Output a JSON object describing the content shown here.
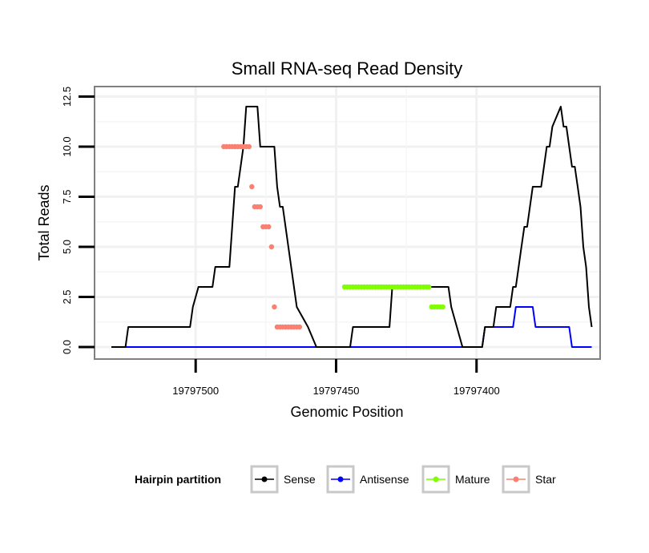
{
  "chart_data": {
    "type": "line",
    "title": "Small RNA-seq Read Density",
    "xlabel": "Genomic Position",
    "ylabel": "Total Reads",
    "x_reversed": true,
    "xlim": [
      19797536,
      19797356
    ],
    "ylim": [
      -0.6,
      13.0
    ],
    "x_ticks": [
      19797500,
      19797450,
      19797400
    ],
    "x_tick_labels": [
      "19797500",
      "19797450",
      "19797400"
    ],
    "y_ticks": [
      0.0,
      2.5,
      5.0,
      7.5,
      10.0,
      12.5
    ],
    "y_tick_labels": [
      "0.0",
      "2.5",
      "5.0",
      "7.5",
      "10.0",
      "12.5"
    ],
    "grid": true,
    "legend": {
      "title": "Hairpin partition",
      "position": "bottom",
      "entries": [
        {
          "name": "Sense",
          "color": "#000000"
        },
        {
          "name": "Antisense",
          "color": "#0000ff"
        },
        {
          "name": "Mature",
          "color": "#7fff00"
        },
        {
          "name": "Star",
          "color": "#fa8072"
        }
      ]
    },
    "series": [
      {
        "name": "Sense",
        "color": "#000000",
        "style": "line",
        "x": [
          19797530,
          19797525,
          19797524,
          19797502,
          19797501,
          19797499,
          19797498,
          19797494,
          19797493,
          19797488,
          19797487,
          19797486,
          19797485,
          19797483,
          19797482,
          19797478,
          19797477,
          19797476,
          19797475,
          19797472,
          19797471,
          19797470,
          19797469,
          19797468,
          19797467,
          19797464,
          19797460,
          19797457,
          19797456,
          19797452,
          19797451,
          19797447,
          19797446,
          19797445,
          19797444,
          19797431,
          19797430,
          19797427,
          19797422,
          19797410,
          19797409,
          19797405,
          19797404,
          19797401,
          19797398,
          19797397,
          19797396,
          19797394,
          19797393,
          19797389,
          19797388,
          19797387,
          19797386,
          19797385,
          19797384,
          19797383,
          19797382,
          19797381,
          19797380,
          19797377,
          19797376,
          19797375,
          19797374,
          19797373,
          19797370,
          19797369,
          19797368,
          19797367,
          19797366,
          19797365,
          19797364,
          19797363,
          19797362,
          19797361,
          19797360,
          19797359
        ],
        "values": [
          0,
          0,
          1,
          1,
          2,
          3,
          3,
          3,
          4,
          4,
          6,
          8,
          8,
          10,
          12,
          12,
          10,
          10,
          10,
          10,
          8,
          7,
          7,
          6,
          5,
          2,
          1,
          0,
          0,
          0,
          0,
          0,
          0,
          0,
          1,
          1,
          3,
          3,
          3,
          3,
          2,
          0,
          0,
          0,
          0,
          1,
          1,
          1,
          2,
          2,
          2,
          3,
          3,
          4,
          5,
          6,
          6,
          7,
          8,
          8,
          9,
          10,
          10,
          11,
          12,
          11,
          11,
          10,
          9,
          9,
          8,
          7,
          5,
          4,
          2,
          1
        ]
      },
      {
        "name": "Antisense",
        "color": "#0000ff",
        "style": "line",
        "x": [
          19797530,
          19797398,
          19797397,
          19797387,
          19797386,
          19797380,
          19797379,
          19797367,
          19797366,
          19797359
        ],
        "values": [
          0,
          0,
          1,
          1,
          2,
          2,
          1,
          1,
          0,
          0
        ]
      },
      {
        "name": "Mature",
        "color": "#7fff00",
        "style": "points",
        "x": [
          19797447,
          19797446,
          19797445,
          19797444,
          19797443,
          19797442,
          19797441,
          19797440,
          19797439,
          19797438,
          19797437,
          19797436,
          19797435,
          19797434,
          19797433,
          19797432,
          19797431,
          19797430,
          19797429,
          19797428,
          19797427,
          19797426,
          19797425,
          19797424,
          19797423,
          19797422,
          19797421,
          19797420,
          19797419,
          19797418,
          19797417,
          19797416,
          19797415,
          19797414,
          19797413,
          19797412
        ],
        "values": [
          3,
          3,
          3,
          3,
          3,
          3,
          3,
          3,
          3,
          3,
          3,
          3,
          3,
          3,
          3,
          3,
          3,
          3,
          3,
          3,
          3,
          3,
          3,
          3,
          3,
          3,
          3,
          3,
          3,
          3,
          3,
          2,
          2,
          2,
          2,
          2
        ]
      },
      {
        "name": "Star",
        "color": "#fa8072",
        "style": "points",
        "x": [
          19797490,
          19797489,
          19797488,
          19797487,
          19797486,
          19797485,
          19797484,
          19797483,
          19797482,
          19797481,
          19797480,
          19797479,
          19797478,
          19797477,
          19797476,
          19797475,
          19797474,
          19797473,
          19797472,
          19797471,
          19797470,
          19797469,
          19797468,
          19797467,
          19797466,
          19797465,
          19797464,
          19797463
        ],
        "values": [
          10,
          10,
          10,
          10,
          10,
          10,
          10,
          10,
          10,
          10,
          8,
          7,
          7,
          7,
          6,
          6,
          6,
          5,
          2,
          1,
          1,
          1,
          1,
          1,
          1,
          1,
          1,
          1
        ]
      }
    ]
  }
}
